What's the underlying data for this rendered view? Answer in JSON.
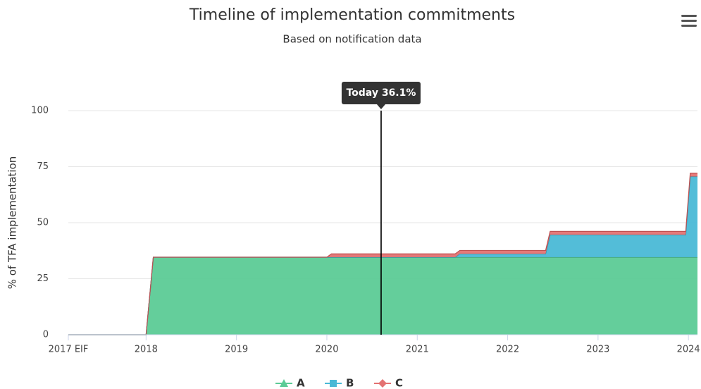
{
  "chart_data": {
    "type": "area",
    "stacked": true,
    "title": "Timeline of implementation commitments",
    "subtitle": "Based on notification data",
    "y_axis_label": "% of TFA implementation",
    "x": [
      2017.14,
      2018.0,
      2018.08,
      2020.0,
      2020.05,
      2021.42,
      2021.47,
      2022.42,
      2022.47,
      2023.97,
      2024.02,
      2024.1
    ],
    "series": [
      {
        "name": "A",
        "color": "#5ccb96",
        "line_color": "#3f9e72",
        "values": [
          0,
          0,
          34.6,
          34.6,
          34.6,
          34.6,
          34.6,
          34.6,
          34.6,
          34.6,
          34.6,
          34.6
        ]
      },
      {
        "name": "B",
        "color": "#4ab9d6",
        "line_color": "#2f8fa8",
        "values": [
          0,
          0,
          0,
          0,
          0,
          0,
          1.5,
          1.5,
          10,
          10,
          36,
          36
        ]
      },
      {
        "name": "C",
        "color": "#e37272",
        "line_color": "#c04f4f",
        "values": [
          0,
          0,
          0,
          0,
          1.5,
          1.5,
          1.5,
          1.5,
          1.5,
          1.5,
          1.5,
          1.5
        ]
      }
    ],
    "xlim": [
      2017.14,
      2024.1
    ],
    "xticks": [
      {
        "value": 2017.14,
        "label": "2017 EIF"
      },
      2018,
      2019,
      2020,
      2021,
      2022,
      2023,
      2024
    ],
    "ylim": [
      0,
      100
    ],
    "yticks": [
      0,
      25,
      50,
      75,
      100
    ],
    "grid": true,
    "plot_line": {
      "x": 2020.6,
      "label": "Today 36.1%"
    },
    "legend_position": "bottom"
  }
}
